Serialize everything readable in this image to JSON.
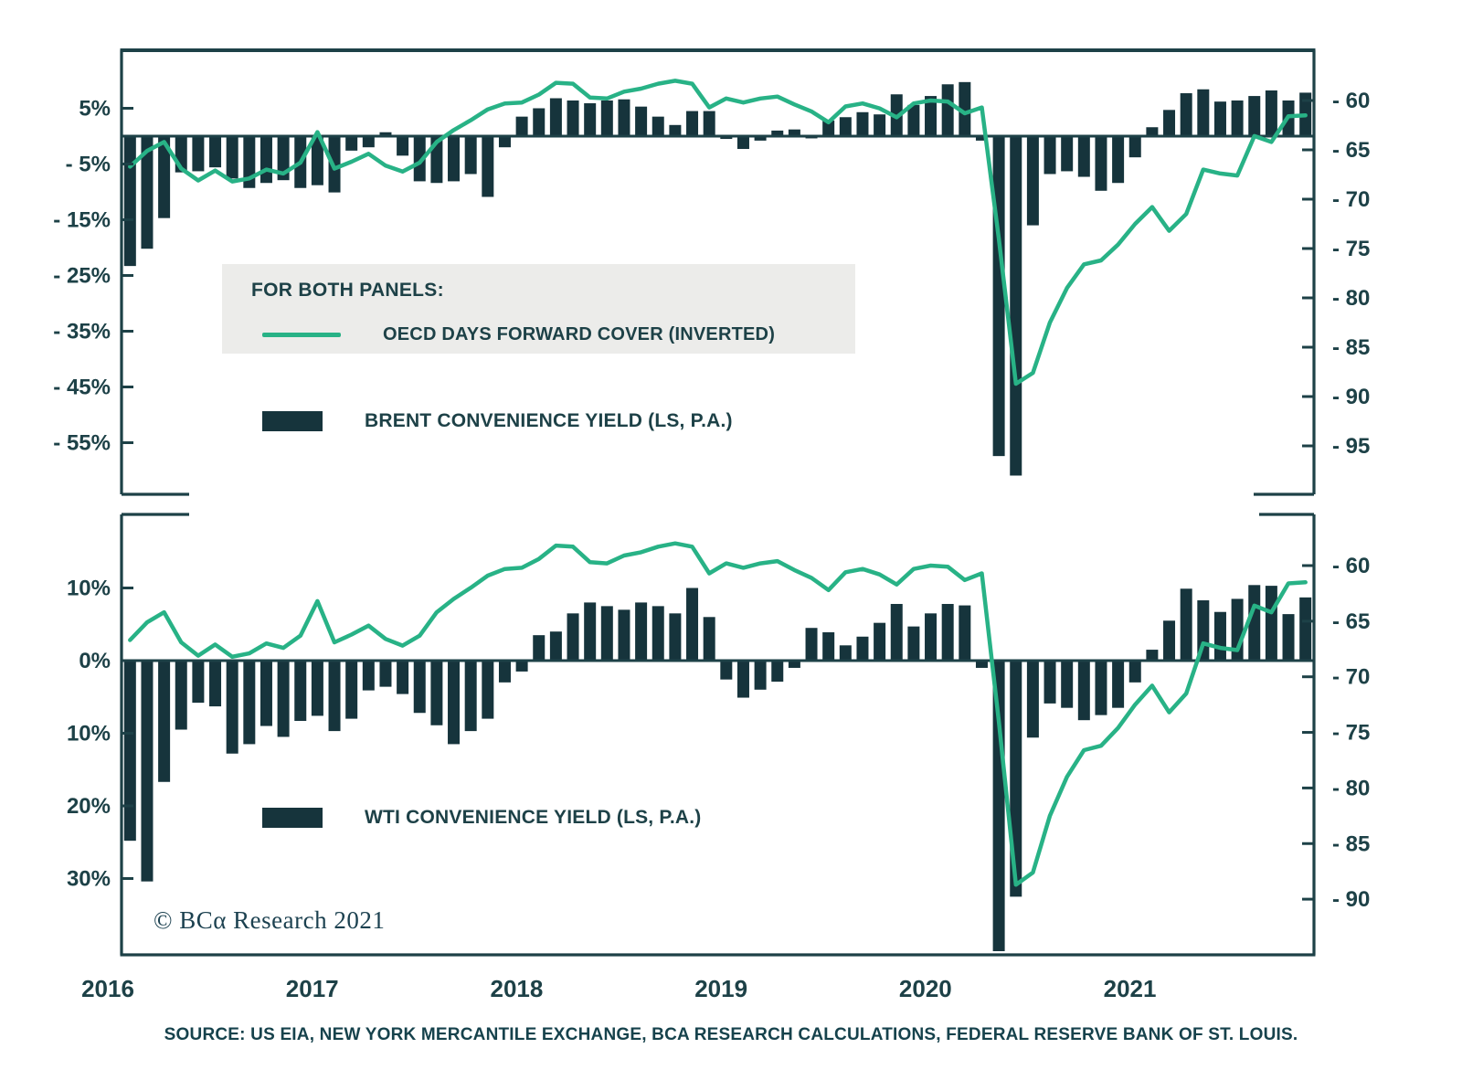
{
  "meta": {
    "copyright": "© BCα Research 2021",
    "source": "SOURCE: US EIA, NEW YORK MERCANTILE EXCHANGE, BCA RESEARCH CALCULATIONS, FEDERAL RESERVE BANK OF ST. LOUIS."
  },
  "legend": {
    "panels_note": "FOR BOTH PANELS:",
    "line_label": "OECD DAYS FORWARD COVER (INVERTED)",
    "brent_label": "BRENT CONVENIENCE YIELD (LS, P.A.)",
    "wti_label": "WTI CONVENIENCE YIELD (LS, P.A.)"
  },
  "colors": {
    "bar": "#16343c",
    "line": "#28b286",
    "frame": "#1d4147",
    "text": "#1d4147",
    "legend_bg": "#ececea",
    "source_text": "#16424c"
  },
  "chart_data": {
    "type": "bar+line, two stacked panels sharing one x-axis",
    "x_range": {
      "start": "2016-01",
      "end": "2021-10",
      "frequency": "monthly",
      "count": 70
    },
    "x_year_labels": [
      "2016",
      "2017",
      "2018",
      "2019",
      "2020",
      "2021"
    ],
    "line_series": {
      "name": "OECD DAYS FORWARD COVER (INVERTED)",
      "unit": "days",
      "axis": "right, inverted",
      "values": [
        66.7,
        65.1,
        64.2,
        66.9,
        68.1,
        67.1,
        68.2,
        67.9,
        67.0,
        67.4,
        66.3,
        63.2,
        66.9,
        66.2,
        65.4,
        66.6,
        67.2,
        66.3,
        64.2,
        63.0,
        62.0,
        60.9,
        60.3,
        60.2,
        59.4,
        58.2,
        58.3,
        59.7,
        59.8,
        59.1,
        58.8,
        58.3,
        58.0,
        58.3,
        60.7,
        59.8,
        60.2,
        59.8,
        59.6,
        60.4,
        61.1,
        62.2,
        60.6,
        60.3,
        60.8,
        61.7,
        60.3,
        60.0,
        60.1,
        61.3,
        60.7,
        74.0,
        88.7,
        87.6,
        82.5,
        79.0,
        76.6,
        76.2,
        74.6,
        72.5,
        70.8,
        73.2,
        71.5,
        67.0,
        67.4,
        67.6,
        63.6,
        64.2,
        61.6,
        61.5
      ]
    },
    "panels": [
      {
        "id": "brent",
        "bar_series": {
          "name": "BRENT CONVENIENCE YIELD (LS, P.A.)",
          "unit": "% p.a.",
          "axis": "left",
          "values": [
            -23.3,
            -20.2,
            -14.7,
            -6.5,
            -6.3,
            -5.6,
            -7.6,
            -9.3,
            -8.4,
            -7.9,
            -9.3,
            -8.8,
            -10.1,
            -2.6,
            -2.0,
            0.7,
            -3.5,
            -8.1,
            -8.4,
            -8.1,
            -6.8,
            -10.9,
            -2.0,
            3.5,
            5.0,
            6.8,
            6.4,
            5.9,
            6.4,
            6.6,
            5.3,
            3.5,
            2.0,
            4.5,
            4.5,
            -0.5,
            -2.3,
            -0.8,
            1.0,
            1.2,
            -0.4,
            2.8,
            3.4,
            4.3,
            3.9,
            7.5,
            5.6,
            7.2,
            9.3,
            9.7,
            -0.8,
            -57.4,
            -60.9,
            -16.0,
            -6.8,
            -6.3,
            -7.3,
            -9.8,
            -8.4,
            -3.8,
            1.6,
            4.7,
            7.7,
            8.4,
            6.2,
            6.4,
            7.2,
            8.2,
            6.4,
            7.8
          ]
        },
        "left_axis": {
          "unit": "%",
          "ticks": [
            {
              "v": 5,
              "label": "5%"
            },
            {
              "v": -5,
              "label": "- 5%"
            },
            {
              "v": -15,
              "label": "- 15%"
            },
            {
              "v": -25,
              "label": "- 25%"
            },
            {
              "v": -35,
              "label": "- 35%"
            },
            {
              "v": -45,
              "label": "- 45%"
            },
            {
              "v": -55,
              "label": "- 55%"
            }
          ]
        },
        "right_axis": {
          "unit": "days",
          "inverted": true,
          "ticks": [
            {
              "v": 60,
              "label": "- 60"
            },
            {
              "v": 65,
              "label": "- 65"
            },
            {
              "v": 70,
              "label": "- 70"
            },
            {
              "v": 75,
              "label": "- 75"
            },
            {
              "v": 80,
              "label": "- 80"
            },
            {
              "v": 85,
              "label": "- 85"
            },
            {
              "v": 90,
              "label": "- 90"
            },
            {
              "v": 95,
              "label": "- 95"
            }
          ]
        }
      },
      {
        "id": "wti",
        "bar_series": {
          "name": "WTI CONVENIENCE YIELD (LS, P.A.)",
          "unit": "% p.a.",
          "axis": "left",
          "values": [
            -24.8,
            -30.4,
            -16.7,
            -9.5,
            -5.8,
            -6.3,
            -12.8,
            -11.5,
            -9.0,
            -10.5,
            -8.3,
            -7.6,
            -9.7,
            -8.0,
            -4.1,
            -3.6,
            -4.6,
            -7.2,
            -8.9,
            -11.5,
            -9.7,
            -8.0,
            -3.0,
            -1.5,
            3.5,
            4.0,
            6.5,
            8.0,
            7.5,
            7.0,
            8.0,
            7.5,
            6.5,
            10.0,
            6.0,
            -2.6,
            -5.1,
            -4.0,
            -2.9,
            -1.0,
            4.5,
            3.9,
            2.1,
            3.3,
            5.2,
            7.8,
            4.7,
            6.5,
            7.8,
            7.6,
            -1.0,
            -40.0,
            -32.5,
            -10.6,
            -5.9,
            -6.5,
            -8.2,
            -7.5,
            -6.5,
            -3.0,
            1.5,
            5.5,
            9.9,
            8.3,
            6.7,
            8.5,
            10.4,
            10.3,
            6.4,
            8.7
          ]
        },
        "left_axis": {
          "unit": "%",
          "ticks": [
            {
              "v": 10,
              "label": "10%"
            },
            {
              "v": 0,
              "label": "0%"
            },
            {
              "v": -10,
              "label": "10%"
            },
            {
              "v": -20,
              "label": "20%"
            },
            {
              "v": -30,
              "label": "30%"
            }
          ]
        },
        "right_axis": {
          "unit": "days",
          "inverted": true,
          "ticks": [
            {
              "v": 60,
              "label": "- 60"
            },
            {
              "v": 65,
              "label": "- 65"
            },
            {
              "v": 70,
              "label": "- 70"
            },
            {
              "v": 75,
              "label": "- 75"
            },
            {
              "v": 80,
              "label": "- 80"
            },
            {
              "v": 85,
              "label": "- 85"
            },
            {
              "v": 90,
              "label": "- 90"
            }
          ]
        }
      }
    ]
  }
}
